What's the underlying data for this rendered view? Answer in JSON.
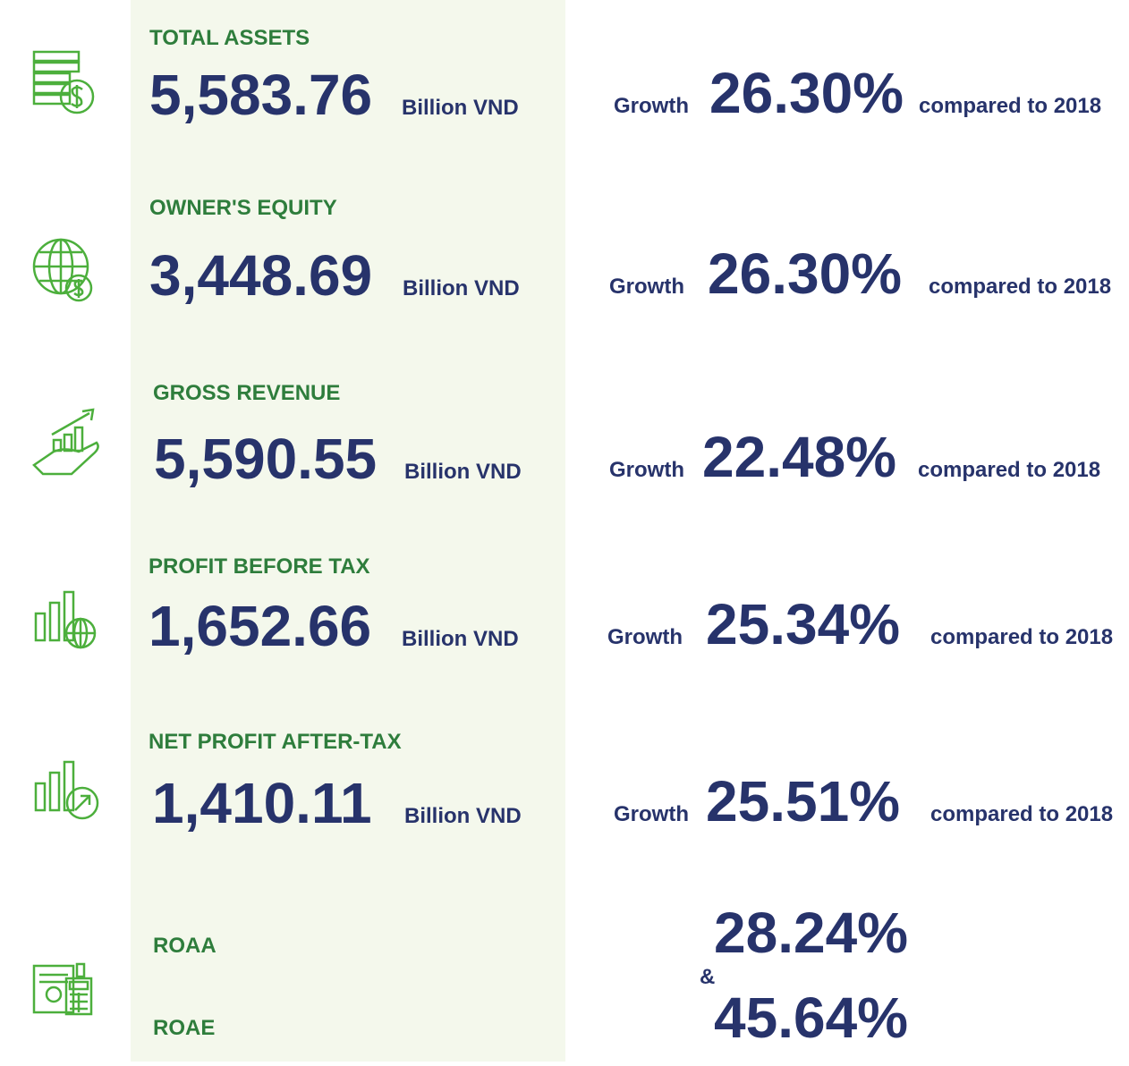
{
  "metrics": [
    {
      "label": "TOTAL ASSETS",
      "value": "5,583.76",
      "unit": "Billion VND",
      "growth_word": "Growth",
      "growth": "26.30%",
      "compared": "compared to 2018"
    },
    {
      "label": "OWNER'S EQUITY",
      "value": "3,448.69",
      "unit": "Billion VND",
      "growth_word": "Growth",
      "growth": "26.30%",
      "compared": "compared to 2018"
    },
    {
      "label": "GROSS REVENUE",
      "value": "5,590.55",
      "unit": "Billion VND",
      "growth_word": "Growth",
      "growth": "22.48%",
      "compared": "compared to 2018"
    },
    {
      "label": "PROFIT BEFORE TAX",
      "value": "1,652.66",
      "unit": "Billion VND",
      "growth_word": "Growth",
      "growth": "25.34%",
      "compared": "compared to 2018"
    },
    {
      "label": "NET PROFIT AFTER-TAX",
      "value": "1,410.11",
      "unit": "Billion VND",
      "growth_word": "Growth",
      "growth": "25.51%",
      "compared": "compared to 2018"
    }
  ],
  "ratios": {
    "roaa_label": "ROAA",
    "roae_label": "ROAE",
    "roaa": "28.24%",
    "joiner": "&",
    "roae": "45.64%"
  }
}
